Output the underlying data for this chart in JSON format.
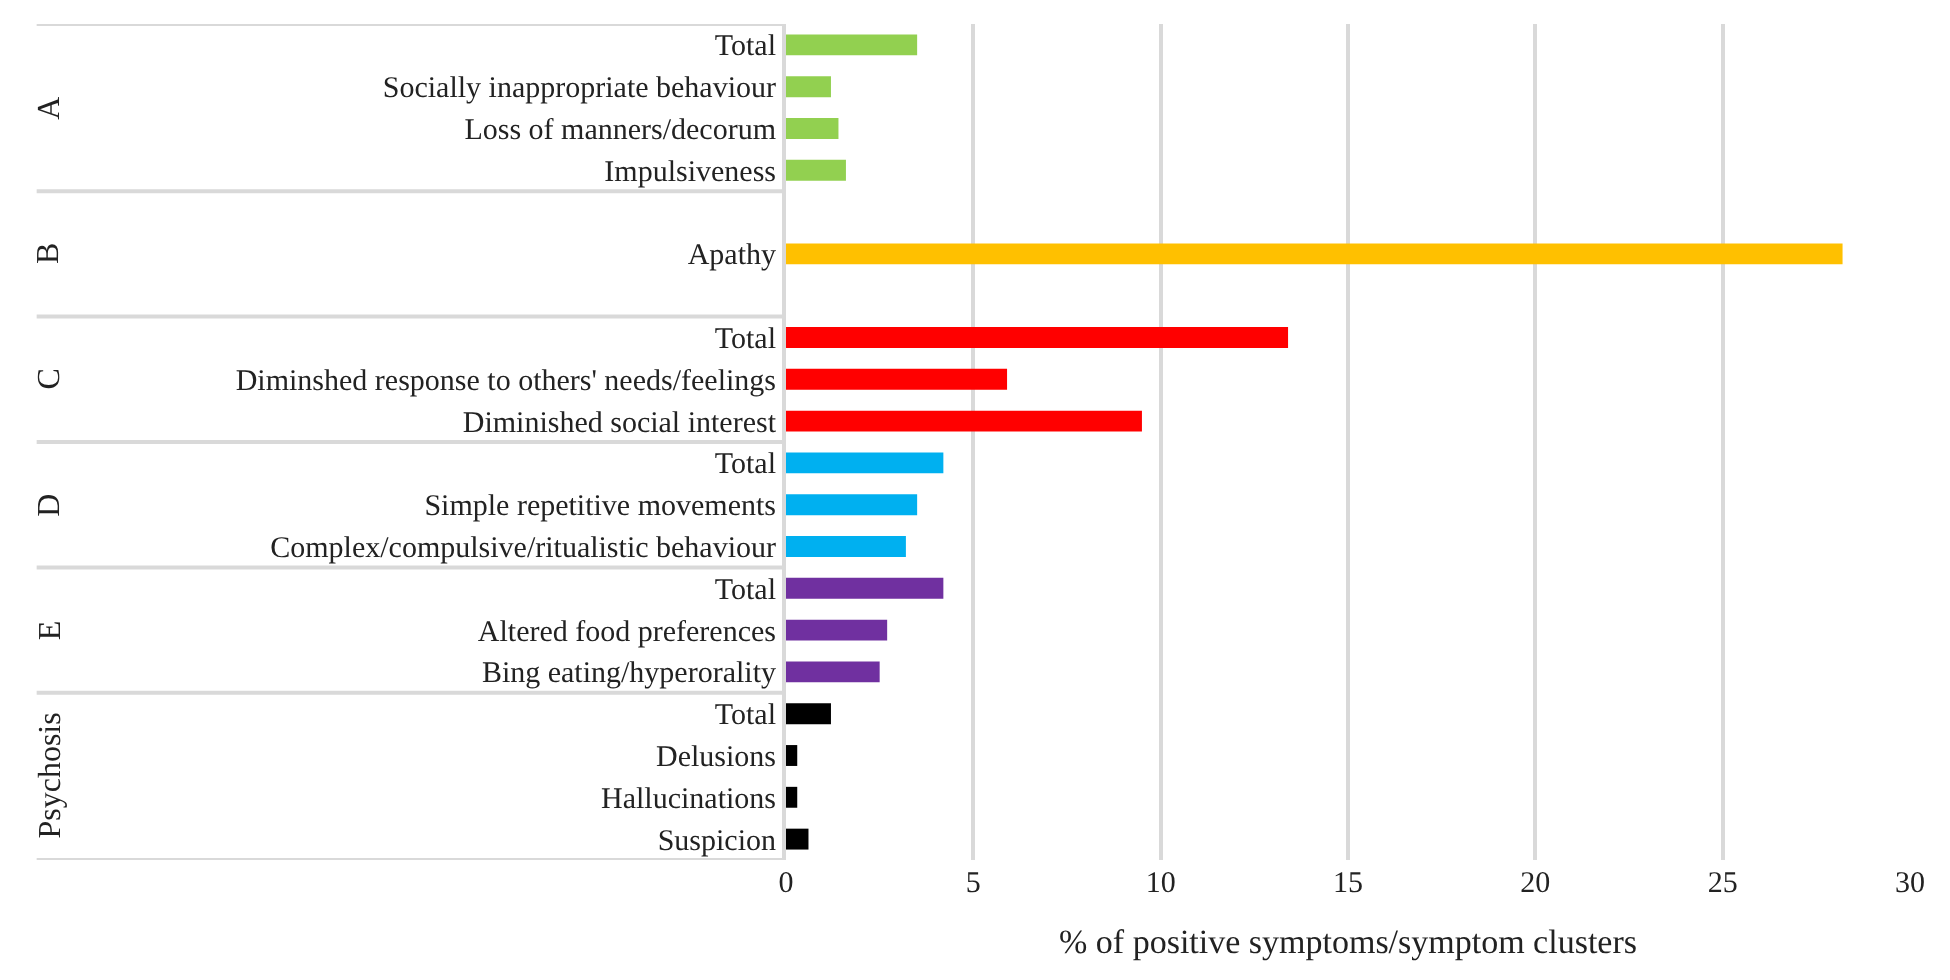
{
  "chart_data": {
    "type": "bar",
    "orientation": "horizontal",
    "xlabel": "% of positive symptoms/symptom clusters",
    "categories": [
      "Total",
      "Socially inappropriate behaviour",
      "Loss of manners/decorum",
      "Impulsiveness",
      null,
      "Apathy",
      null,
      "Total",
      "Diminshed response to others' needs/feelings",
      "Diminished social interest",
      "Total",
      "Simple repetitive movements",
      "Complex/compulsive/ritualistic behaviour",
      "Total",
      "Altered food preferences",
      "Bing eating/hyperorality",
      "Total",
      "Delusions",
      "Hallucinations",
      "Suspicion"
    ],
    "values": [
      3.5,
      1.2,
      1.4,
      1.6,
      null,
      28.2,
      null,
      13.4,
      5.9,
      9.5,
      4.2,
      3.5,
      3.2,
      4.2,
      2.7,
      2.5,
      1.2,
      0.3,
      0.3,
      0.6
    ],
    "colors": [
      "#92d050",
      "#92d050",
      "#92d050",
      "#92d050",
      "#ffc000",
      "#ffc000",
      "#ffc000",
      "#ff0000",
      "#ff0000",
      "#ff0000",
      "#00b0f0",
      "#00b0f0",
      "#00b0f0",
      "#7030a0",
      "#7030a0",
      "#7030a0",
      "#000000",
      "#000000",
      "#000000",
      "#000000"
    ],
    "annotations": [
      "A",
      "B",
      "C",
      "D",
      "E",
      "Psychosis"
    ],
    "xlim": [
      0,
      30
    ],
    "xticks": [
      0,
      5,
      10,
      15,
      20,
      25,
      30
    ],
    "grid": "x"
  }
}
